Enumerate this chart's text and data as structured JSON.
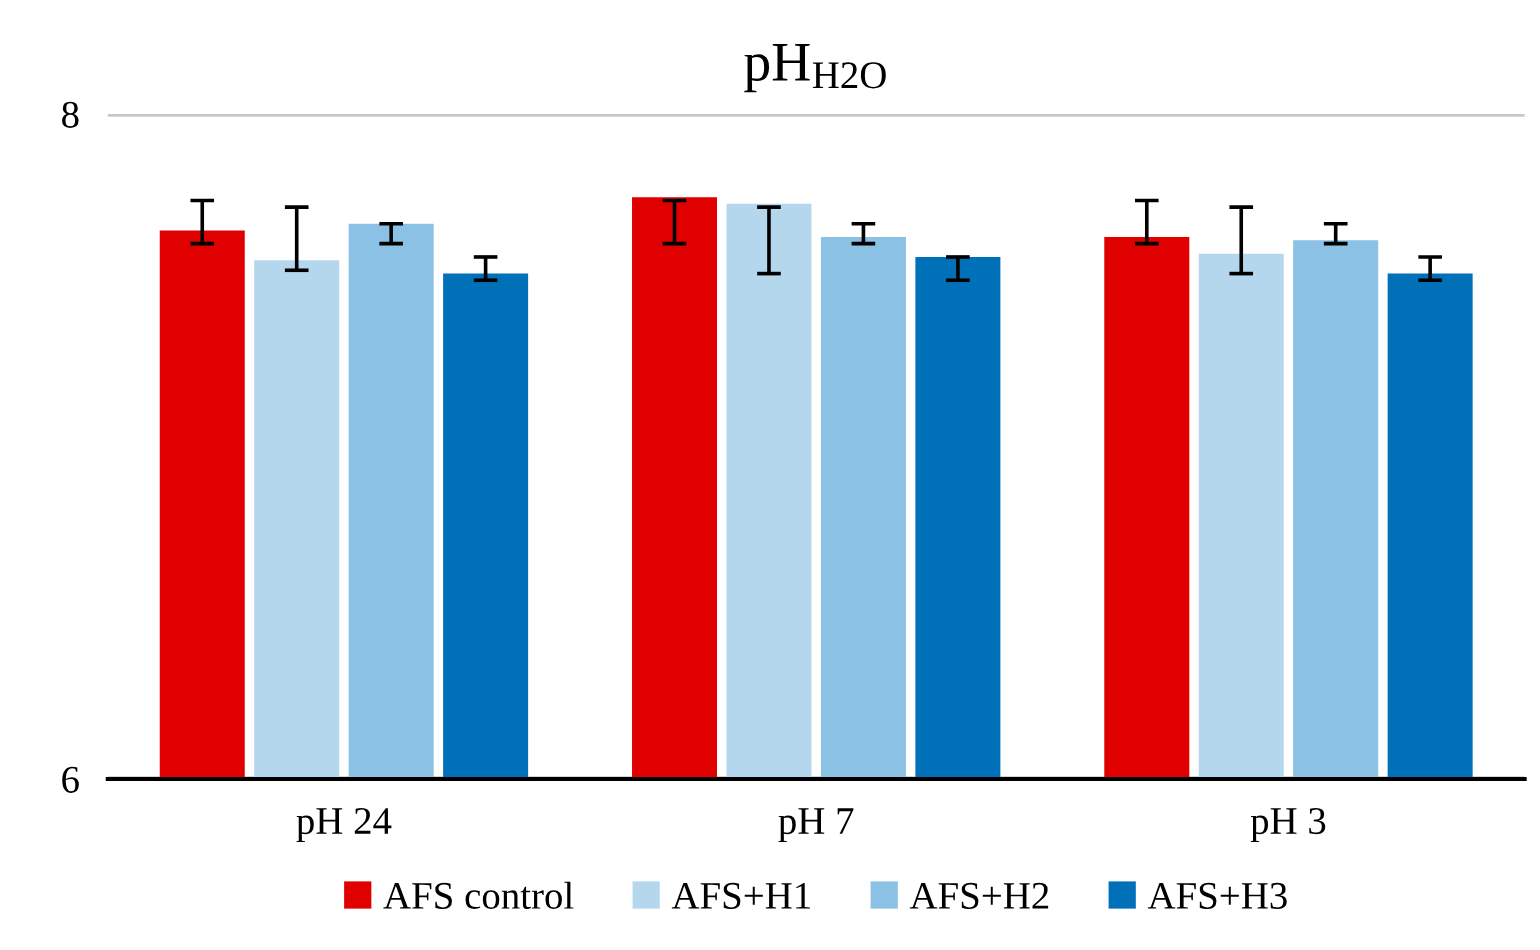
{
  "chart_data": {
    "type": "bar",
    "title": "pH$_{H2O}$",
    "categories": [
      "pH 24",
      "pH 7",
      "pH 3"
    ],
    "series": [
      {
        "name": "AFS control",
        "color": "#e00000",
        "values": [
          7.65,
          7.75,
          7.63
        ],
        "errors": [
          [
            7.61,
            7.74
          ],
          [
            7.61,
            7.74
          ],
          [
            7.61,
            7.74
          ]
        ]
      },
      {
        "name": "AFS+H1",
        "color": "#b4d7ee",
        "values": [
          7.56,
          7.73,
          7.58
        ],
        "errors": [
          [
            7.53,
            7.72
          ],
          [
            7.52,
            7.72
          ],
          [
            7.52,
            7.72
          ]
        ]
      },
      {
        "name": "AFS+H2",
        "color": "#8bc1e4",
        "values": [
          7.67,
          7.63,
          7.62
        ],
        "errors": [
          [
            7.61,
            7.67
          ],
          [
            7.61,
            7.67
          ],
          [
            7.61,
            7.67
          ]
        ]
      },
      {
        "name": "AFS+H3",
        "color": "#0070b8",
        "values": [
          7.52,
          7.57,
          7.52
        ],
        "errors": [
          [
            7.5,
            7.57
          ],
          [
            7.5,
            7.57
          ],
          [
            7.5,
            7.57
          ]
        ]
      }
    ],
    "ylim": [
      6,
      8
    ],
    "yticks": [
      6,
      8
    ],
    "grid": "y",
    "legend": "bottom"
  }
}
